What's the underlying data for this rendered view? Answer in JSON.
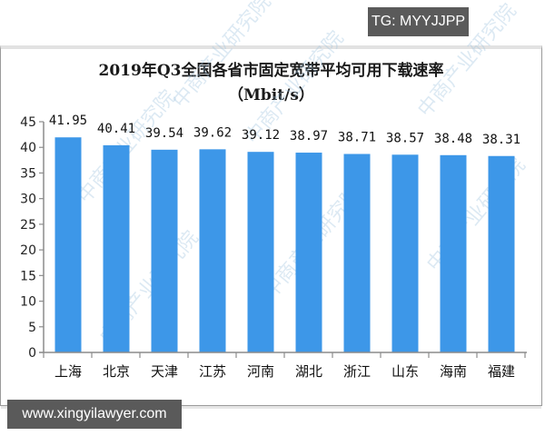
{
  "badges": {
    "top_right": "TG: MYYJJPP",
    "bottom_left": "www.xingyilawyer.com"
  },
  "chart": {
    "title_line1": "2019年Q3全国各省市固定宽带平均可用下载速率",
    "title_line2": "（Mbit/s）",
    "bar_color": "#3d97e8",
    "axis_color": "#8c8c8c",
    "watermark_text": "中商产业研究院"
  },
  "chart_data": {
    "type": "bar",
    "title": "2019年Q3全国各省市固定宽带平均可用下载速率（Mbit/s）",
    "xlabel": "",
    "ylabel": "",
    "categories": [
      "上海",
      "北京",
      "天津",
      "江苏",
      "河南",
      "湖北",
      "浙江",
      "山东",
      "海南",
      "福建"
    ],
    "values": [
      41.95,
      40.41,
      39.54,
      39.62,
      39.12,
      38.97,
      38.71,
      38.57,
      38.48,
      38.31
    ],
    "value_labels": [
      "41.95",
      "40.41",
      "39.54",
      "39.62",
      "39.12",
      "38.97",
      "38.71",
      "38.57",
      "38.48",
      "38.31"
    ],
    "ylim": [
      0,
      45
    ],
    "yticks": [
      0,
      5,
      10,
      15,
      20,
      25,
      30,
      35,
      40,
      45
    ],
    "grid": false,
    "legend": null
  }
}
